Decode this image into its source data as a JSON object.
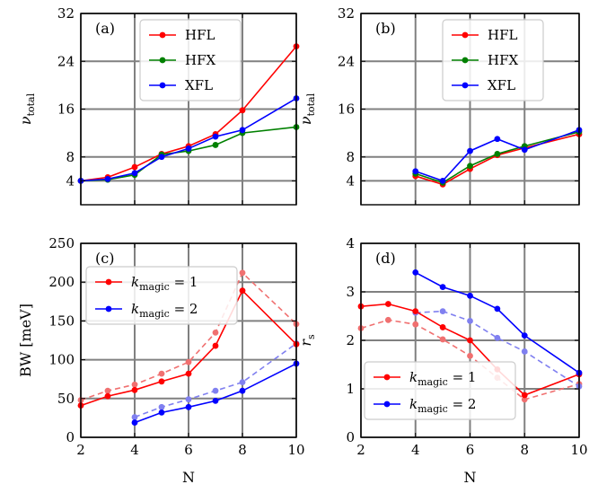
{
  "chart_data": [
    {
      "panel": "(a)",
      "type": "line",
      "x_ticks": [
        "2",
        "4",
        "6",
        "8",
        "10"
      ],
      "y_ticks": [
        "4",
        "8",
        "16",
        "24",
        "32"
      ],
      "xlim": [
        2,
        10
      ],
      "ylim": [
        0,
        32
      ],
      "grid": true,
      "legend_position": "top-center",
      "ylabel": "ν",
      "ylabel_sub": "total",
      "series": [
        {
          "name": "HFL",
          "color": "#ff0000",
          "dashed": false,
          "x": [
            2,
            3,
            4,
            5,
            6,
            7,
            8,
            10
          ],
          "y": [
            4.0,
            4.6,
            6.3,
            8.5,
            9.8,
            11.8,
            15.8,
            26.5
          ]
        },
        {
          "name": "HFX",
          "color": "#008000",
          "dashed": false,
          "x": [
            2,
            3,
            4,
            5,
            6,
            7,
            8,
            10
          ],
          "y": [
            4.0,
            4.2,
            5.0,
            8.4,
            9.0,
            10.0,
            12.0,
            13.0
          ]
        },
        {
          "name": "XFL",
          "color": "#0000ff",
          "dashed": false,
          "x": [
            2,
            3,
            4,
            5,
            6,
            7,
            8,
            10
          ],
          "y": [
            4.0,
            4.3,
            5.3,
            8.0,
            9.4,
            11.4,
            12.5,
            17.8
          ]
        }
      ]
    },
    {
      "panel": "(b)",
      "type": "line",
      "x_ticks": [
        "2",
        "4",
        "6",
        "8",
        "10"
      ],
      "y_ticks": [
        "4",
        "8",
        "16",
        "24",
        "32"
      ],
      "xlim": [
        2,
        10
      ],
      "ylim": [
        0,
        32
      ],
      "grid": true,
      "legend_position": "top-right",
      "ylabel": "ν",
      "ylabel_sub": "total",
      "series": [
        {
          "name": "HFL",
          "color": "#ff0000",
          "dashed": false,
          "x": [
            4,
            5,
            6,
            7,
            8,
            10
          ],
          "y": [
            4.8,
            3.4,
            6.0,
            8.3,
            9.5,
            11.8
          ]
        },
        {
          "name": "HFX",
          "color": "#008000",
          "dashed": false,
          "x": [
            4,
            5,
            6,
            7,
            8,
            10
          ],
          "y": [
            5.2,
            3.7,
            6.5,
            8.5,
            9.8,
            12.2
          ]
        },
        {
          "name": "XFL",
          "color": "#0000ff",
          "dashed": false,
          "x": [
            4,
            5,
            6,
            7,
            8,
            10
          ],
          "y": [
            5.6,
            4.0,
            9.0,
            11.0,
            9.2,
            12.5
          ]
        }
      ]
    },
    {
      "panel": "(c)",
      "type": "line",
      "x_ticks": [
        "2",
        "4",
        "6",
        "8",
        "10"
      ],
      "y_ticks": [
        "0",
        "50",
        "100",
        "150",
        "200",
        "250"
      ],
      "xlim": [
        2,
        10
      ],
      "ylim": [
        0,
        250
      ],
      "grid": true,
      "legend_position": "top-left",
      "xlabel": "N",
      "ylabel": "BW [meV]",
      "series": [
        {
          "name": "k",
          "name_sub": "magic",
          "name_suffix": " = 1",
          "color": "#ff0000",
          "dashed": false,
          "x": [
            2,
            3,
            4,
            5,
            6,
            7,
            8,
            10
          ],
          "y": [
            41,
            53,
            61,
            72,
            82,
            118,
            189,
            120
          ]
        },
        {
          "name": "k",
          "name_sub": "magic",
          "name_suffix": " = 2",
          "color": "#0000ff",
          "dashed": false,
          "x": [
            4,
            5,
            6,
            7,
            8,
            10
          ],
          "y": [
            19,
            32,
            39,
            47,
            60,
            95
          ]
        },
        {
          "name": "",
          "color": "#ff0000",
          "dashed": true,
          "x": [
            2,
            3,
            4,
            5,
            6,
            7,
            8,
            10
          ],
          "y": [
            48,
            60,
            68,
            82,
            97,
            135,
            212,
            146
          ]
        },
        {
          "name": "",
          "color": "#0000ff",
          "dashed": true,
          "x": [
            4,
            5,
            6,
            7,
            8,
            10
          ],
          "y": [
            26,
            39,
            49,
            60,
            71,
            121
          ]
        }
      ]
    },
    {
      "panel": "(d)",
      "type": "line",
      "x_ticks": [
        "2",
        "4",
        "6",
        "8",
        "10"
      ],
      "y_ticks": [
        "0",
        "1",
        "2",
        "3",
        "4"
      ],
      "xlim": [
        2,
        10
      ],
      "ylim": [
        0,
        4
      ],
      "grid": true,
      "legend_position": "bottom-left",
      "xlabel": "N",
      "ylabel": "r",
      "ylabel_sub": "s",
      "series": [
        {
          "name": "k",
          "name_sub": "magic",
          "name_suffix": " = 1",
          "color": "#ff0000",
          "dashed": false,
          "x": [
            2,
            3,
            4,
            5,
            6,
            7,
            8,
            10
          ],
          "y": [
            2.7,
            2.75,
            2.6,
            2.27,
            2.0,
            1.4,
            0.87,
            1.3
          ]
        },
        {
          "name": "k",
          "name_sub": "magic",
          "name_suffix": " = 2",
          "color": "#0000ff",
          "dashed": false,
          "x": [
            4,
            5,
            6,
            7,
            8,
            10
          ],
          "y": [
            3.4,
            3.1,
            2.92,
            2.65,
            2.1,
            1.33
          ]
        },
        {
          "name": "",
          "color": "#ff0000",
          "dashed": true,
          "x": [
            2,
            3,
            4,
            5,
            6,
            7,
            8,
            10
          ],
          "y": [
            2.25,
            2.42,
            2.33,
            2.02,
            1.68,
            1.23,
            0.78,
            1.1
          ]
        },
        {
          "name": "",
          "color": "#0000ff",
          "dashed": true,
          "x": [
            4,
            5,
            6,
            7,
            8,
            10
          ],
          "y": [
            2.57,
            2.6,
            2.4,
            2.05,
            1.77,
            1.05
          ]
        }
      ]
    }
  ]
}
